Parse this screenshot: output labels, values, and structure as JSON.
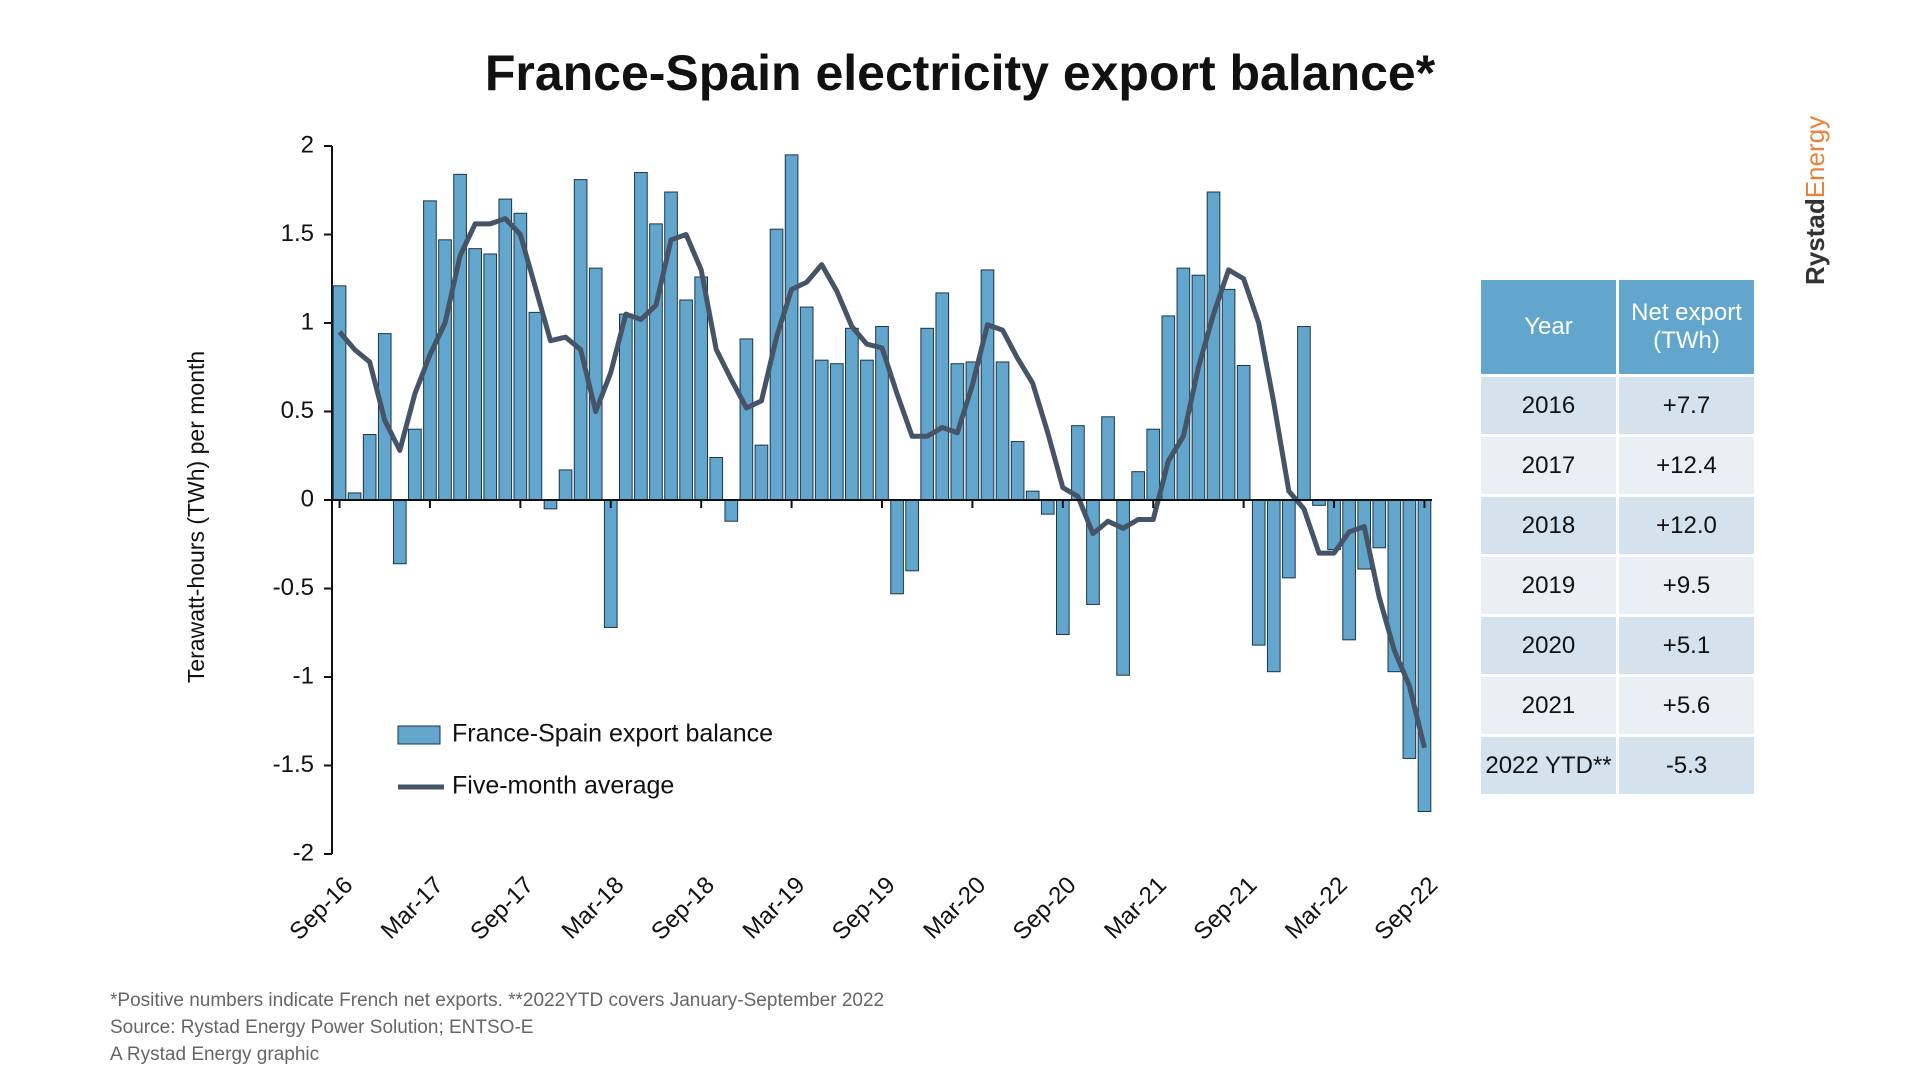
{
  "chart_data": {
    "type": "bar",
    "title": "France-Spain electricity export balance*",
    "y_label": "Terawatt-hours (TWh) per month",
    "categories": [
      "Sep-16",
      null,
      null,
      null,
      null,
      null,
      "Mar-17",
      null,
      null,
      null,
      null,
      null,
      "Sep-17",
      null,
      null,
      null,
      null,
      null,
      "Mar-18",
      null,
      null,
      null,
      null,
      null,
      "Sep-18",
      null,
      null,
      null,
      null,
      null,
      "Mar-19",
      null,
      null,
      null,
      null,
      null,
      "Sep-19",
      null,
      null,
      null,
      null,
      null,
      "Mar-20",
      null,
      null,
      null,
      null,
      null,
      "Sep-20",
      null,
      null,
      null,
      null,
      null,
      "Mar-21",
      null,
      null,
      null,
      null,
      null,
      "Sep-21",
      null,
      null,
      null,
      null,
      null,
      "Mar-22",
      null,
      null,
      null,
      null,
      null,
      "Sep-22"
    ],
    "series": [
      {
        "name": "France-Spain export balance",
        "type": "bar",
        "color": "#62a6cd",
        "values": [
          1.21,
          0.04,
          0.37,
          0.94,
          -0.36,
          0.4,
          1.69,
          1.47,
          1.84,
          1.42,
          1.39,
          1.7,
          1.62,
          1.06,
          -0.05,
          0.17,
          1.81,
          1.31,
          -0.72,
          1.05,
          1.85,
          1.56,
          1.74,
          1.13,
          1.26,
          0.24,
          -0.12,
          0.91,
          0.31,
          1.53,
          1.95,
          1.09,
          0.79,
          0.77,
          0.97,
          0.79,
          0.98,
          -0.53,
          -0.4,
          0.97,
          1.17,
          0.77,
          0.78,
          1.3,
          0.78,
          0.33,
          0.05,
          -0.08,
          -0.76,
          0.42,
          -0.59,
          0.47,
          -0.99,
          0.16,
          0.4,
          1.04,
          1.31,
          1.27,
          1.74,
          1.19,
          0.76,
          -0.82,
          -0.97,
          -0.44,
          0.98,
          -0.03,
          -0.28,
          -0.79,
          -0.39,
          -0.27,
          -0.97,
          -1.46,
          -1.76
        ]
      },
      {
        "name": "Five-month average",
        "type": "line",
        "color": "#465468",
        "values": [
          0.95,
          0.85,
          0.78,
          0.45,
          0.28,
          0.6,
          0.82,
          1.0,
          1.38,
          1.56,
          1.56,
          1.59,
          1.5,
          1.2,
          0.9,
          0.92,
          0.85,
          0.5,
          0.72,
          1.05,
          1.02,
          1.1,
          1.47,
          1.5,
          1.3,
          0.85,
          0.68,
          0.52,
          0.56,
          0.92,
          1.19,
          1.23,
          1.33,
          1.18,
          0.98,
          0.88,
          0.86,
          0.6,
          0.36,
          0.36,
          0.41,
          0.38,
          0.65,
          0.99,
          0.96,
          0.8,
          0.66,
          0.38,
          0.07,
          0.02,
          -0.19,
          -0.12,
          -0.16,
          -0.11,
          -0.11,
          0.22,
          0.36,
          0.75,
          1.05,
          1.3,
          1.25,
          1.0,
          0.55,
          0.05,
          -0.05,
          -0.3,
          -0.3,
          -0.18,
          -0.15,
          -0.55,
          -0.85,
          -1.05,
          -1.4
        ]
      }
    ],
    "ylim": [
      -2,
      2
    ],
    "yticks": [
      -2,
      -1.5,
      -1,
      -0.5,
      0,
      0.5,
      1,
      1.5,
      2
    ],
    "legend": "lower-left"
  },
  "table": {
    "header": [
      "Year",
      "Net export (TWh)"
    ],
    "rows": [
      [
        "2016",
        "+7.7"
      ],
      [
        "2017",
        "+12.4"
      ],
      [
        "2018",
        "+12.0"
      ],
      [
        "2019",
        "+9.5"
      ],
      [
        "2020",
        "+5.1"
      ],
      [
        "2021",
        "+5.6"
      ],
      [
        "2022 YTD**",
        "-5.3"
      ]
    ]
  },
  "footnotes": [
    "*Positive numbers indicate French net exports. **2022YTD covers January-September 2022",
    "Source: Rystad Energy Power Solution; ENTSO-E",
    "A Rystad Energy graphic"
  ],
  "logo": [
    "Rystad",
    "Energy"
  ]
}
